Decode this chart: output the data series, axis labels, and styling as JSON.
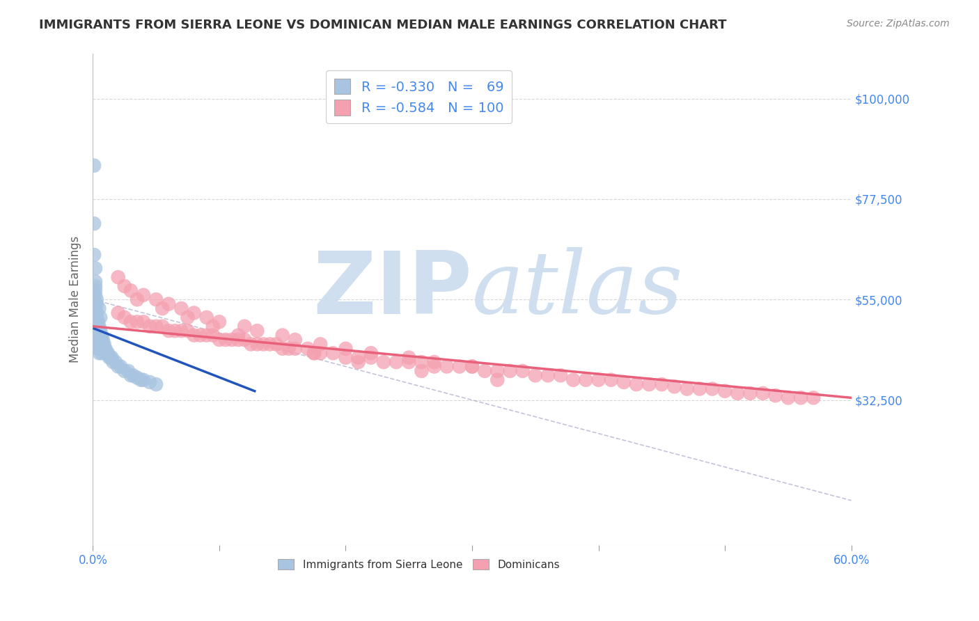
{
  "title": "IMMIGRANTS FROM SIERRA LEONE VS DOMINICAN MEDIAN MALE EARNINGS CORRELATION CHART",
  "source": "Source: ZipAtlas.com",
  "ylabel": "Median Male Earnings",
  "xlim": [
    0,
    0.6
  ],
  "ylim": [
    0,
    110000
  ],
  "yticks": [
    32500,
    55000,
    77500,
    100000
  ],
  "ytick_labels": [
    "$32,500",
    "$55,000",
    "$77,500",
    "$100,000"
  ],
  "sierra_leone_color": "#a8c4e0",
  "dominican_color": "#f4a0b0",
  "sierra_leone_line_color": "#2255bb",
  "dominican_line_color": "#e8607a",
  "grid_color": "#cccccc",
  "background_color": "#ffffff",
  "title_color": "#333333",
  "axis_label_color": "#666666",
  "blue_color": "#4488ee",
  "watermark_color": "#d0dff0",
  "legend_r1": "R = -0.330",
  "legend_n1": "69",
  "legend_r2": "R = -0.584",
  "legend_n2": "100",
  "sierra_leone_x": [
    0.001,
    0.001,
    0.001,
    0.002,
    0.002,
    0.002,
    0.002,
    0.002,
    0.003,
    0.003,
    0.003,
    0.003,
    0.003,
    0.003,
    0.003,
    0.004,
    0.004,
    0.004,
    0.004,
    0.004,
    0.004,
    0.004,
    0.004,
    0.005,
    0.005,
    0.005,
    0.005,
    0.005,
    0.005,
    0.005,
    0.006,
    0.006,
    0.006,
    0.006,
    0.007,
    0.007,
    0.007,
    0.007,
    0.008,
    0.008,
    0.008,
    0.009,
    0.009,
    0.01,
    0.01,
    0.011,
    0.012,
    0.013,
    0.014,
    0.015,
    0.016,
    0.018,
    0.02,
    0.022,
    0.025,
    0.028,
    0.03,
    0.032,
    0.035,
    0.038,
    0.04,
    0.045,
    0.05,
    0.003,
    0.004,
    0.002,
    0.003,
    0.005,
    0.006
  ],
  "sierra_leone_y": [
    85000,
    72000,
    65000,
    62000,
    59000,
    57000,
    56000,
    54000,
    54000,
    52000,
    51000,
    50000,
    49000,
    48000,
    47000,
    50000,
    49000,
    48000,
    47000,
    46000,
    46000,
    45000,
    44000,
    49000,
    48000,
    47000,
    46000,
    45000,
    44000,
    43000,
    48000,
    47000,
    46000,
    44000,
    47000,
    46000,
    45000,
    43000,
    46000,
    45000,
    44000,
    45000,
    44000,
    44000,
    43000,
    43000,
    43000,
    42000,
    42000,
    42000,
    41000,
    41000,
    40000,
    40000,
    39000,
    39000,
    38000,
    38000,
    37500,
    37000,
    37000,
    36500,
    36000,
    52000,
    50000,
    58000,
    55000,
    53000,
    51000
  ],
  "dominican_x": [
    0.02,
    0.025,
    0.03,
    0.035,
    0.04,
    0.045,
    0.05,
    0.055,
    0.06,
    0.065,
    0.07,
    0.075,
    0.08,
    0.085,
    0.09,
    0.095,
    0.1,
    0.105,
    0.11,
    0.115,
    0.12,
    0.125,
    0.13,
    0.135,
    0.14,
    0.15,
    0.155,
    0.16,
    0.17,
    0.175,
    0.18,
    0.19,
    0.2,
    0.21,
    0.22,
    0.23,
    0.24,
    0.25,
    0.26,
    0.27,
    0.28,
    0.29,
    0.3,
    0.31,
    0.32,
    0.33,
    0.34,
    0.35,
    0.36,
    0.37,
    0.38,
    0.39,
    0.4,
    0.41,
    0.42,
    0.43,
    0.44,
    0.45,
    0.46,
    0.47,
    0.48,
    0.49,
    0.5,
    0.51,
    0.52,
    0.53,
    0.54,
    0.55,
    0.56,
    0.57,
    0.025,
    0.04,
    0.06,
    0.08,
    0.1,
    0.13,
    0.16,
    0.2,
    0.25,
    0.3,
    0.02,
    0.03,
    0.05,
    0.07,
    0.09,
    0.12,
    0.15,
    0.18,
    0.22,
    0.27,
    0.035,
    0.055,
    0.075,
    0.095,
    0.115,
    0.145,
    0.175,
    0.21,
    0.26,
    0.32
  ],
  "dominican_y": [
    52000,
    51000,
    50000,
    50000,
    50000,
    49000,
    49000,
    49000,
    48000,
    48000,
    48000,
    48000,
    47000,
    47000,
    47000,
    47000,
    46000,
    46000,
    46000,
    46000,
    46000,
    45000,
    45000,
    45000,
    45000,
    44000,
    44000,
    44000,
    44000,
    43000,
    43000,
    43000,
    42000,
    42000,
    42000,
    41000,
    41000,
    41000,
    41000,
    40000,
    40000,
    40000,
    40000,
    39000,
    39000,
    39000,
    39000,
    38000,
    38000,
    38000,
    37000,
    37000,
    37000,
    37000,
    36500,
    36000,
    36000,
    36000,
    35500,
    35000,
    35000,
    35000,
    34500,
    34000,
    34000,
    34000,
    33500,
    33000,
    33000,
    33000,
    58000,
    56000,
    54000,
    52000,
    50000,
    48000,
    46000,
    44000,
    42000,
    40000,
    60000,
    57000,
    55000,
    53000,
    51000,
    49000,
    47000,
    45000,
    43000,
    41000,
    55000,
    53000,
    51000,
    49000,
    47000,
    45000,
    43000,
    41000,
    39000,
    37000
  ],
  "sl_line_x": [
    0.001,
    0.128
  ],
  "sl_line_y": [
    48500,
    34500
  ],
  "dom_line_x": [
    0.0,
    0.6
  ],
  "dom_line_y": [
    49000,
    33000
  ],
  "ref_line_x": [
    0.0,
    0.6
  ],
  "ref_line_y": [
    55000,
    10000
  ]
}
